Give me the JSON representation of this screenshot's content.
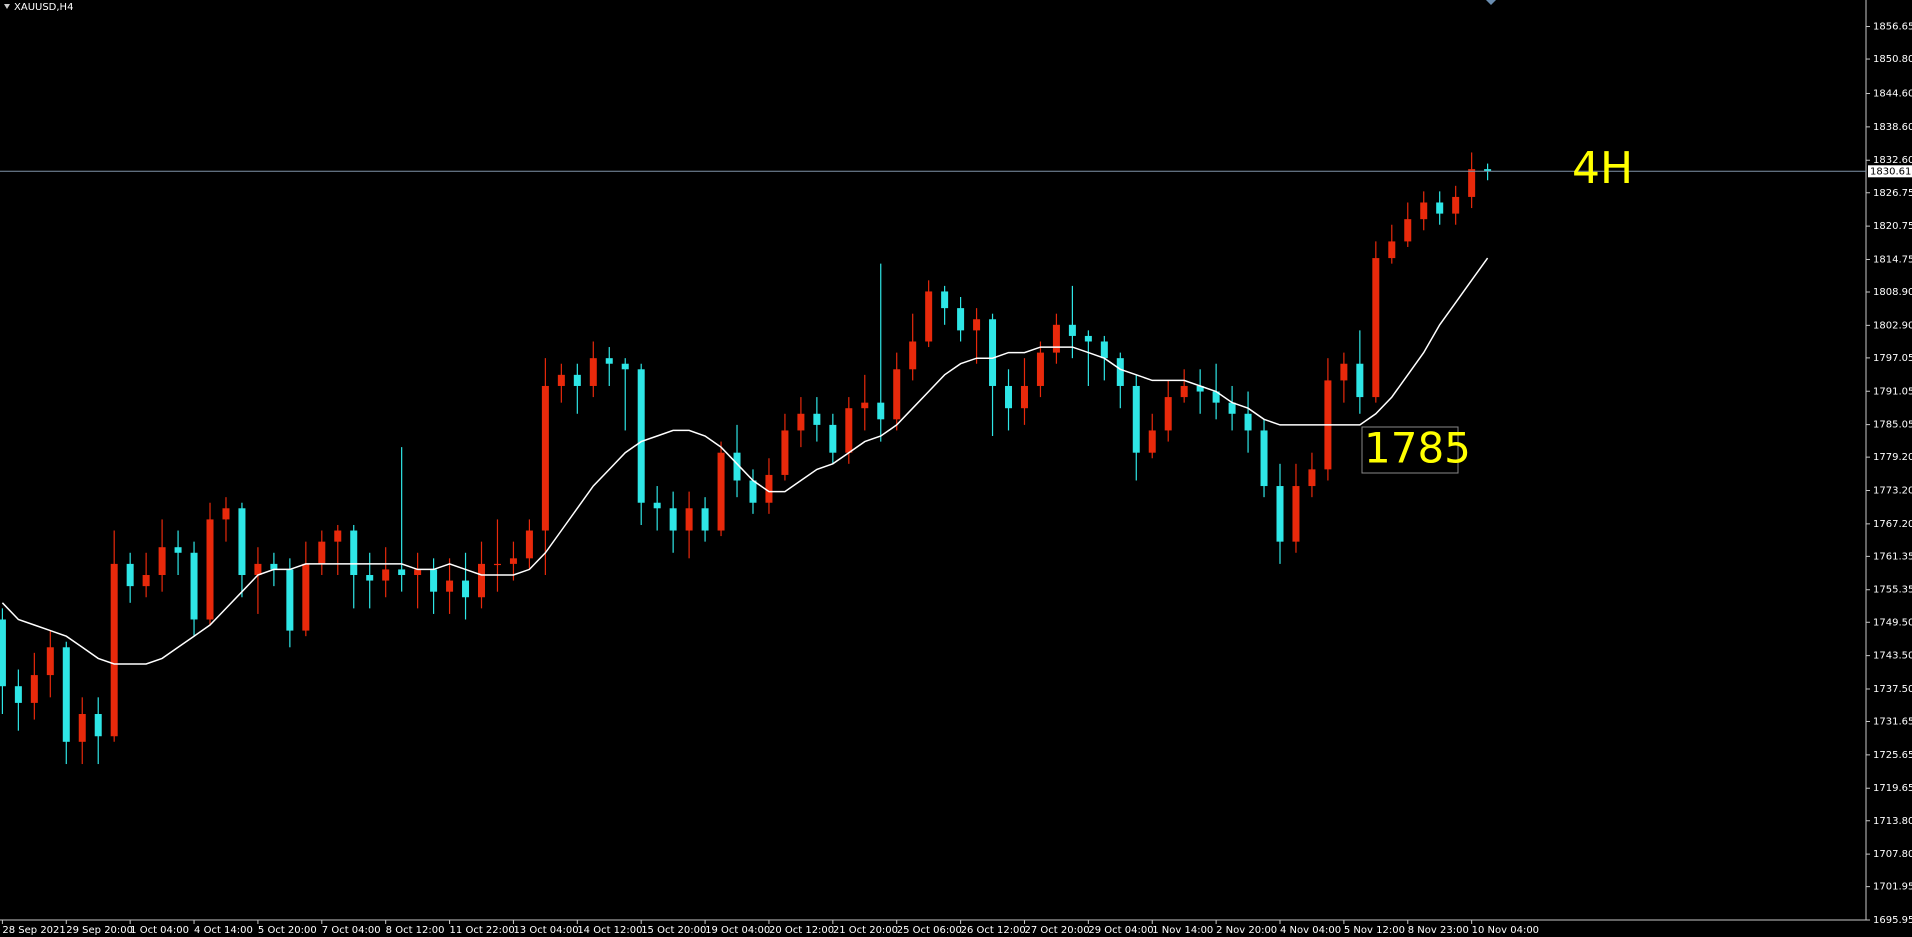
{
  "chart_data": {
    "type": "candlestick",
    "title": "XAUUSD,H4",
    "categories": [
      "28 Sep 2021",
      null,
      null,
      null,
      "29 Sep 20:00",
      null,
      null,
      null,
      "1 Oct 04:00",
      null,
      null,
      null,
      "4 Oct 14:00",
      null,
      null,
      null,
      "5 Oct 20:00",
      null,
      null,
      null,
      "7 Oct 04:00",
      null,
      null,
      null,
      "8 Oct 12:00",
      null,
      null,
      null,
      "11 Oct 22:00",
      null,
      null,
      null,
      "13 Oct 04:00",
      null,
      null,
      null,
      "14 Oct 12:00",
      null,
      null,
      null,
      "15 Oct 20:00",
      null,
      null,
      null,
      "19 Oct 04:00",
      null,
      null,
      null,
      "20 Oct 12:00",
      null,
      null,
      null,
      "21 Oct 20:00",
      null,
      null,
      null,
      "25 Oct 06:00",
      null,
      null,
      null,
      "26 Oct 12:00",
      null,
      null,
      null,
      "27 Oct 20:00",
      null,
      null,
      null,
      "29 Oct 04:00",
      null,
      null,
      null,
      "1 Nov 14:00",
      null,
      null,
      null,
      "2 Nov 20:00",
      null,
      null,
      null,
      "4 Nov 04:00",
      null,
      null,
      null,
      "5 Nov 12:00",
      null,
      null,
      null,
      "8 Nov 23:00",
      null,
      null,
      null,
      "10 Nov 04:00",
      null
    ],
    "open": [
      1750,
      1738,
      1735,
      1740,
      1745,
      1728,
      1733,
      1729,
      1760,
      1756,
      1758,
      1763,
      1762,
      1750,
      1768,
      1770,
      1758,
      1760,
      1759,
      1748,
      1760,
      1764,
      1766,
      1758,
      1757,
      1759,
      1758,
      1759,
      1755,
      1757,
      1754,
      1760,
      1760,
      1761,
      1766,
      1792,
      1794,
      1792,
      1797,
      1796,
      1795,
      1771,
      1770,
      1766,
      1770,
      1766,
      1780,
      1775,
      1771,
      1776,
      1784,
      1787,
      1785,
      1780,
      1788,
      1789,
      1786,
      1795,
      1800,
      1809,
      1806,
      1802,
      1804,
      1792,
      1788,
      1792,
      1798,
      1803,
      1801,
      1800,
      1797,
      1792,
      1780,
      1784,
      1790,
      1792,
      1791,
      1789,
      1787,
      1784,
      1774,
      1764,
      1774,
      1777,
      1793,
      1796,
      1790,
      1815,
      1818,
      1822,
      1825,
      1823,
      1826,
      1831
    ],
    "high": [
      1752,
      1741,
      1744,
      1748,
      1746,
      1736,
      1736,
      1766,
      1762,
      1762,
      1768,
      1766,
      1764,
      1771,
      1772,
      1771,
      1763,
      1762,
      1761,
      1764,
      1766,
      1767,
      1767,
      1762,
      1763,
      1781,
      1762,
      1761,
      1761,
      1762,
      1764,
      1768,
      1764,
      1768,
      1797,
      1796,
      1796,
      1800,
      1799,
      1797,
      1796,
      1774,
      1773,
      1773,
      1772,
      1782,
      1785,
      1777,
      1779,
      1787,
      1790,
      1790,
      1787,
      1790,
      1794,
      1814,
      1798,
      1805,
      1811,
      1810,
      1808,
      1806,
      1805,
      1795,
      1797,
      1800,
      1805,
      1810,
      1802,
      1801,
      1798,
      1794,
      1787,
      1793,
      1795,
      1795,
      1796,
      1792,
      1791,
      1786,
      1778,
      1778,
      1780,
      1797,
      1798,
      1802,
      1818,
      1821,
      1825,
      1827,
      1827,
      1828,
      1834,
      1832
    ],
    "low": [
      1733,
      1730,
      1732,
      1736,
      1724,
      1724,
      1724,
      1728,
      1753,
      1754,
      1755,
      1758,
      1747,
      1749,
      1764,
      1754,
      1751,
      1756,
      1745,
      1747,
      1758,
      1758,
      1752,
      1752,
      1754,
      1755,
      1752,
      1751,
      1751,
      1750,
      1752,
      1755,
      1757,
      1759,
      1758,
      1789,
      1787,
      1790,
      1792,
      1784,
      1767,
      1766,
      1762,
      1761,
      1764,
      1765,
      1772,
      1769,
      1769,
      1775,
      1781,
      1782,
      1778,
      1778,
      1784,
      1782,
      1784,
      1793,
      1799,
      1803,
      1800,
      1796,
      1783,
      1784,
      1785,
      1790,
      1796,
      1797,
      1792,
      1793,
      1788,
      1775,
      1779,
      1782,
      1789,
      1787,
      1786,
      1784,
      1780,
      1772,
      1760,
      1762,
      1772,
      1775,
      1789,
      1787,
      1789,
      1814,
      1817,
      1820,
      1821,
      1821,
      1824,
      1829
    ],
    "close": [
      1738,
      1735,
      1740,
      1745,
      1728,
      1733,
      1729,
      1760,
      1756,
      1758,
      1763,
      1762,
      1750,
      1768,
      1770,
      1758,
      1760,
      1759,
      1748,
      1760,
      1764,
      1766,
      1758,
      1757,
      1759,
      1758,
      1759,
      1755,
      1757,
      1754,
      1760,
      1760,
      1761,
      1766,
      1792,
      1794,
      1792,
      1797,
      1796,
      1795,
      1771,
      1770,
      1766,
      1770,
      1766,
      1780,
      1775,
      1771,
      1776,
      1784,
      1787,
      1785,
      1780,
      1788,
      1789,
      1786,
      1795,
      1800,
      1809,
      1806,
      1802,
      1804,
      1792,
      1788,
      1792,
      1798,
      1803,
      1801,
      1800,
      1797,
      1792,
      1780,
      1784,
      1790,
      1792,
      1791,
      1789,
      1787,
      1784,
      1774,
      1764,
      1774,
      1777,
      1793,
      1796,
      1790,
      1815,
      1818,
      1822,
      1825,
      1823,
      1826,
      1831,
      1830.61
    ],
    "up_color": "#e8290b",
    "down_color": "#2ee6e6",
    "ma": {
      "color": "#ffffff",
      "values": [
        1753,
        1750,
        1749,
        1748,
        1747,
        1745,
        1743,
        1742,
        1742,
        1742,
        1743,
        1745,
        1747,
        1749,
        1752,
        1755,
        1758,
        1759,
        1759,
        1760,
        1760,
        1760,
        1760,
        1760,
        1760,
        1760,
        1759,
        1759,
        1760,
        1759,
        1758,
        1758,
        1758,
        1759,
        1762,
        1766,
        1770,
        1774,
        1777,
        1780,
        1782,
        1783,
        1784,
        1784,
        1783,
        1781,
        1778,
        1775,
        1773,
        1773,
        1775,
        1777,
        1778,
        1780,
        1782,
        1783,
        1785,
        1788,
        1791,
        1794,
        1796,
        1797,
        1797,
        1798,
        1798,
        1799,
        1799,
        1799,
        1798,
        1797,
        1795,
        1794,
        1793,
        1793,
        1793,
        1792,
        1791,
        1789,
        1788,
        1786,
        1785,
        1785,
        1785,
        1785,
        1785,
        1785,
        1787,
        1790,
        1794,
        1798,
        1803,
        1807,
        1811,
        1815
      ]
    },
    "ylim": [
      1695.95,
      1861.42
    ],
    "yticks": [
      1856.65,
      {
        "value": 1850.8,
        "label": "1850.80"
      },
      {
        "value": 1844.6,
        "label": "1844.60"
      },
      {
        "value": 1838.6,
        "label": "1838.60"
      },
      {
        "value": 1832.6,
        "label": "1832.60"
      },
      1826.75,
      1820.75,
      1814.75,
      {
        "value": 1808.9,
        "label": "1808.90"
      },
      {
        "value": 1802.9,
        "label": "1802.90"
      },
      1797.05,
      1791.05,
      1785.05,
      {
        "value": 1779.2,
        "label": "1779.20"
      },
      {
        "value": 1773.2,
        "label": "1773.20"
      },
      {
        "value": 1767.2,
        "label": "1767.20"
      },
      1761.35,
      1755.35,
      {
        "value": 1749.5,
        "label": "1749.50"
      },
      {
        "value": 1743.5,
        "label": "1743.50"
      },
      {
        "value": 1737.5,
        "label": "1737.50"
      },
      1731.65,
      1725.65,
      1719.65,
      {
        "value": 1713.8,
        "label": "1713.80"
      },
      {
        "value": 1707.8,
        "label": "1707.80"
      },
      1701.95,
      1695.95
    ],
    "current_price": 1830.61,
    "price_line_color": "#7f93a8",
    "annotations": [
      "4H",
      "1785"
    ],
    "annotation_color": "#ffff00"
  }
}
